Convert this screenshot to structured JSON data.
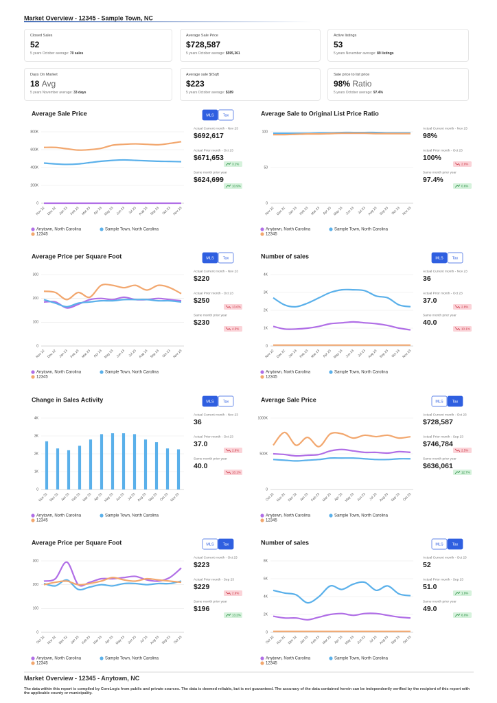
{
  "header": {
    "title": "Market Overview - 12345 - Sample Town, NC"
  },
  "cards": [
    {
      "label": "Closed Sales",
      "value": "52",
      "note": "5 years October average:",
      "note_value": "70 sales"
    },
    {
      "label": "Average Sale Price",
      "value": "$728,587",
      "note": "5 years October average:",
      "note_value": "$595,361"
    },
    {
      "label": "Active listings",
      "value": "53",
      "note": "5 years November average:",
      "note_value": "89 listings"
    },
    {
      "label": "Days On Market",
      "value": "18",
      "unit": "Avg",
      "note": "5 years November average:",
      "note_value": "33 days"
    },
    {
      "label": "Average sale $/Sqft",
      "value": "$223",
      "note": "5 years October average:",
      "note_value": "$189"
    },
    {
      "label": "Sale price to list price",
      "value": "98%",
      "unit": "Ratio",
      "note": "5 years October average:",
      "note_value": "97.4%"
    }
  ],
  "chart_data": [
    {
      "type": "line",
      "title": "Average Sale Price",
      "toggle": {
        "options": [
          "MLS",
          "Tax"
        ],
        "active": 0
      },
      "categories": [
        "Nov 22",
        "Dec 22",
        "Jan 23",
        "Feb 23",
        "Mar 23",
        "Apr 23",
        "May 23",
        "Jun 23",
        "Jul 23",
        "Aug 23",
        "Sep 23",
        "Oct 23",
        "Nov 23"
      ],
      "series": [
        {
          "name": "Anytown, North Carolina",
          "color": "#b06ee6",
          "values": [
            0,
            0,
            0,
            0,
            0,
            0,
            0,
            0,
            0,
            0,
            0,
            0,
            0
          ]
        },
        {
          "name": "Sample Town, North Carolina",
          "color": "#5ab0ea",
          "values": [
            450000,
            440000,
            435000,
            440000,
            455000,
            470000,
            480000,
            485000,
            480000,
            475000,
            470000,
            468000,
            465000
          ]
        },
        {
          "name": "12345",
          "color": "#f2a76e",
          "values": [
            625000,
            625000,
            610000,
            595000,
            600000,
            615000,
            650000,
            660000,
            665000,
            660000,
            655000,
            670000,
            690000
          ]
        }
      ],
      "ylim": [
        0,
        800000
      ],
      "yticks": [
        0,
        {
          "value": 200000,
          "label": "200K"
        },
        {
          "value": 400000,
          "label": "400K"
        },
        {
          "value": 600000,
          "label": "600K"
        },
        {
          "value": 800000,
          "label": "800K"
        }
      ],
      "grid": true,
      "stats": [
        {
          "label": "Actual Current month - Nov 23",
          "value": "$692,617"
        },
        {
          "label": "Actual Prior month - Oct 23",
          "value": "$671,653",
          "change": "3.1%",
          "direction": "up"
        },
        {
          "label": "Same month prior year",
          "value": "$624,699",
          "change": "10.9%",
          "direction": "up"
        }
      ]
    },
    {
      "type": "line",
      "title": "Average Sale to Original List Price Ratio",
      "categories": [
        "Nov 22",
        "Dec 22",
        "Jan 23",
        "Feb 23",
        "Mar 23",
        "Apr 23",
        "May 23",
        "Jun 23",
        "Jul 23",
        "Aug 23",
        "Sep 23",
        "Oct 23",
        "Nov 23"
      ],
      "series": [
        {
          "name": "Anytown, North Carolina",
          "color": "#b06ee6",
          "values": [
            97,
            97,
            97,
            97.5,
            97.5,
            98,
            98,
            98,
            98,
            98,
            98,
            98,
            98
          ]
        },
        {
          "name": "Sample Town, North Carolina",
          "color": "#5ab0ea",
          "values": [
            98,
            98,
            98,
            98,
            98.5,
            98.5,
            99,
            99,
            99,
            99,
            98.5,
            98.5,
            98.5
          ]
        },
        {
          "name": "12345",
          "color": "#f2a76e",
          "values": [
            96,
            96,
            96.5,
            97,
            97,
            97.5,
            98,
            98,
            98,
            97.5,
            97.5,
            97.5,
            97.5
          ]
        }
      ],
      "ylim": [
        0,
        100
      ],
      "yticks": [
        0,
        50,
        100
      ],
      "grid": true,
      "stats": [
        {
          "label": "Actual Current month - Nov 23",
          "value": "98%"
        },
        {
          "label": "Actual Prior month - Oct 23",
          "value": "100%",
          "change": "2.0%",
          "direction": "down"
        },
        {
          "label": "Same month prior year",
          "value": "97.4%",
          "change": "0.6%",
          "direction": "up"
        }
      ]
    },
    {
      "type": "line",
      "title": "Average Price per Square Foot",
      "toggle": {
        "options": [
          "MLS",
          "Tax"
        ],
        "active": 0
      },
      "categories": [
        "Nov 22",
        "Dec 22",
        "Jan 23",
        "Feb 23",
        "Mar 23",
        "Apr 23",
        "May 23",
        "Jun 23",
        "Jul 23",
        "Aug 23",
        "Sep 23",
        "Oct 23",
        "Nov 23"
      ],
      "series": [
        {
          "name": "Anytown, North Carolina",
          "color": "#b06ee6",
          "values": [
            185,
            185,
            160,
            175,
            195,
            200,
            195,
            205,
            195,
            195,
            200,
            195,
            190
          ]
        },
        {
          "name": "Sample Town, North Carolina",
          "color": "#5ab0ea",
          "values": [
            195,
            180,
            165,
            180,
            185,
            190,
            190,
            195,
            195,
            195,
            190,
            190,
            185
          ]
        },
        {
          "name": "12345",
          "color": "#f2a76e",
          "values": [
            230,
            225,
            195,
            225,
            205,
            255,
            255,
            245,
            255,
            235,
            255,
            245,
            220
          ]
        }
      ],
      "ylim": [
        0,
        300
      ],
      "yticks": [
        0,
        100,
        200,
        300
      ],
      "grid": true,
      "stats": [
        {
          "label": "Actual Current month - Nov 23",
          "value": "$220"
        },
        {
          "label": "Actual Prior month - Oct 23",
          "value": "$250",
          "change": "13.6%",
          "direction": "down"
        },
        {
          "label": "Same month prior year",
          "value": "$230",
          "change": "4.5%",
          "direction": "down"
        }
      ]
    },
    {
      "type": "line",
      "title": "Number of sales",
      "toggle": {
        "options": [
          "MLS",
          "Tax"
        ],
        "active": 0
      },
      "categories": [
        "Nov 22",
        "Dec 22",
        "Jan 23",
        "Feb 23",
        "Mar 23",
        "Apr 23",
        "May 23",
        "Jun 23",
        "Jul 23",
        "Aug 23",
        "Sep 23",
        "Oct 23",
        "Nov 23"
      ],
      "series": [
        {
          "name": "Anytown, North Carolina",
          "color": "#b06ee6",
          "values": [
            1100,
            950,
            950,
            1000,
            1100,
            1250,
            1300,
            1350,
            1300,
            1250,
            1150,
            1000,
            900
          ]
        },
        {
          "name": "Sample Town, North Carolina",
          "color": "#5ab0ea",
          "values": [
            2700,
            2300,
            2200,
            2400,
            2700,
            3000,
            3150,
            3150,
            3100,
            2800,
            2700,
            2300,
            2200
          ]
        },
        {
          "name": "12345",
          "color": "#f2a76e",
          "values": [
            50,
            50,
            50,
            50,
            50,
            50,
            50,
            50,
            50,
            50,
            50,
            50,
            50
          ]
        }
      ],
      "ylim": [
        0,
        4000
      ],
      "yticks": [
        0,
        {
          "value": 1000,
          "label": "1K"
        },
        {
          "value": 2000,
          "label": "2K"
        },
        {
          "value": 3000,
          "label": "3K"
        },
        {
          "value": 4000,
          "label": "4K"
        }
      ],
      "grid": true,
      "stats": [
        {
          "label": "Actual Current month - Nov 23",
          "value": "36"
        },
        {
          "label": "Actual Prior month - Oct 23",
          "value": "37.0",
          "change": "2.8%",
          "direction": "down"
        },
        {
          "label": "Same month prior year",
          "value": "40.0",
          "change": "10.1%",
          "direction": "down"
        }
      ]
    },
    {
      "type": "bar",
      "title": "Change in Sales Activity",
      "toggle": {
        "options": [
          "MLS",
          "Tax"
        ],
        "active": 0
      },
      "categories": [
        "Nov 22",
        "Dec 22",
        "Jan 23",
        "Feb 23",
        "Mar 23",
        "Apr 23",
        "May 23",
        "Jun 23",
        "Jul 23",
        "Aug 23",
        "Sep 23",
        "Oct 23",
        "Nov 23"
      ],
      "series": [
        {
          "name": "Sample Town, North Carolina",
          "color": "#5ab0ea",
          "values": [
            2700,
            2300,
            2200,
            2450,
            2800,
            3100,
            3150,
            3150,
            3100,
            2800,
            2650,
            2300,
            2250
          ]
        }
      ],
      "legend": [
        {
          "name": "Anytown, North Carolina",
          "color": "#b06ee6"
        },
        {
          "name": "Sample Town, North Carolina",
          "color": "#5ab0ea"
        },
        {
          "name": "12345",
          "color": "#f2a76e"
        }
      ],
      "ylim": [
        0,
        4000
      ],
      "yticks": [
        0,
        {
          "value": 1000,
          "label": "1K"
        },
        {
          "value": 2000,
          "label": "2K"
        },
        {
          "value": 3000,
          "label": "3K"
        },
        {
          "value": 4000,
          "label": "4K"
        }
      ],
      "grid": true,
      "stats": [
        {
          "label": "Actual Current month - Nov 23",
          "value": "36"
        },
        {
          "label": "Actual Prior month - Oct 23",
          "value": "37.0",
          "change": "2.8%",
          "direction": "down"
        },
        {
          "label": "Same month prior year",
          "value": "40.0",
          "change": "10.1%",
          "direction": "down"
        }
      ]
    },
    {
      "type": "line",
      "title": "Average Sale Price",
      "toggle": {
        "options": [
          "MLS",
          "Tax"
        ],
        "active": 1
      },
      "categories": [
        "Oct 22",
        "Nov 22",
        "Dec 22",
        "Jan 23",
        "Feb 23",
        "Mar 23",
        "Apr 23",
        "May 23",
        "Jun 23",
        "Jul 23",
        "Aug 23",
        "Sep 23",
        "Oct 23"
      ],
      "series": [
        {
          "name": "Anytown, North Carolina",
          "color": "#b06ee6",
          "values": [
            500000,
            490000,
            470000,
            480000,
            490000,
            540000,
            560000,
            540000,
            520000,
            520000,
            510000,
            530000,
            520000
          ]
        },
        {
          "name": "Sample Town, North Carolina",
          "color": "#5ab0ea",
          "values": [
            420000,
            410000,
            400000,
            410000,
            420000,
            440000,
            440000,
            440000,
            430000,
            420000,
            420000,
            430000,
            430000
          ]
        },
        {
          "name": "12345",
          "color": "#f2a76e",
          "values": [
            620000,
            800000,
            620000,
            730000,
            600000,
            780000,
            780000,
            720000,
            760000,
            740000,
            760000,
            720000,
            740000
          ]
        }
      ],
      "ylim": [
        0,
        1000000
      ],
      "yticks": [
        0,
        {
          "value": 500000,
          "label": "500K"
        },
        {
          "value": 1000000,
          "label": "1000K"
        }
      ],
      "grid": true,
      "stats": [
        {
          "label": "Actual Current month - Oct 23",
          "value": "$728,587"
        },
        {
          "label": "Actual Prior month - Sep 23",
          "value": "$746,784",
          "change": "2.5%",
          "direction": "down"
        },
        {
          "label": "Same month prior year",
          "value": "$636,061",
          "change": "12.7%",
          "direction": "up"
        }
      ]
    },
    {
      "type": "line",
      "title": "Average Price per Square Foot",
      "toggle": {
        "options": [
          "MLS",
          "Tax"
        ],
        "active": 1
      },
      "categories": [
        "Oct 22",
        "Nov 22",
        "Dec 22",
        "Jan 23",
        "Feb 23",
        "Mar 23",
        "Apr 23",
        "May 23",
        "Jun 23",
        "Jul 23",
        "Aug 23",
        "Sep 23",
        "Oct 23"
      ],
      "series": [
        {
          "name": "Anytown, North Carolina",
          "color": "#b06ee6",
          "values": [
            215,
            225,
            295,
            200,
            210,
            225,
            225,
            230,
            235,
            220,
            215,
            230,
            270
          ]
        },
        {
          "name": "Sample Town, North Carolina",
          "color": "#5ab0ea",
          "values": [
            205,
            195,
            220,
            180,
            190,
            200,
            195,
            205,
            205,
            200,
            205,
            205,
            215
          ]
        },
        {
          "name": "12345",
          "color": "#f2a76e",
          "values": [
            200,
            210,
            215,
            200,
            205,
            215,
            230,
            220,
            215,
            225,
            220,
            215,
            210
          ]
        }
      ],
      "ylim": [
        0,
        300
      ],
      "yticks": [
        0,
        100,
        200,
        300
      ],
      "grid": true,
      "stats": [
        {
          "label": "Actual Current month - Oct 23",
          "value": "$223"
        },
        {
          "label": "Actual Prior month - Sep 23",
          "value": "$229",
          "change": "2.6%",
          "direction": "down"
        },
        {
          "label": "Same month prior year",
          "value": "$196",
          "change": "13.2%",
          "direction": "up"
        }
      ]
    },
    {
      "type": "line",
      "title": "Number of sales",
      "toggle": {
        "options": [
          "MLS",
          "Tax"
        ],
        "active": 1
      },
      "categories": [
        "Oct 22",
        "Nov 22",
        "Dec 22",
        "Jan 23",
        "Feb 23",
        "Mar 23",
        "Apr 23",
        "May 23",
        "Jun 23",
        "Jul 23",
        "Aug 23",
        "Sep 23",
        "Oct 23"
      ],
      "series": [
        {
          "name": "Anytown, North Carolina",
          "color": "#b06ee6",
          "values": [
            1800,
            1600,
            1600,
            1400,
            1700,
            2000,
            2100,
            1900,
            2100,
            2100,
            1900,
            1700,
            1600
          ]
        },
        {
          "name": "Sample Town, North Carolina",
          "color": "#5ab0ea",
          "values": [
            4700,
            4400,
            4200,
            3300,
            4000,
            5200,
            4800,
            5400,
            5600,
            4700,
            5200,
            4300,
            4100
          ]
        },
        {
          "name": "12345",
          "color": "#f2a76e",
          "values": [
            100,
            100,
            100,
            100,
            100,
            100,
            100,
            100,
            100,
            100,
            100,
            100,
            100
          ]
        }
      ],
      "ylim": [
        0,
        8000
      ],
      "yticks": [
        0,
        {
          "value": 2000,
          "label": "2K"
        },
        {
          "value": 4000,
          "label": "4K"
        },
        {
          "value": 6000,
          "label": "6K"
        },
        {
          "value": 8000,
          "label": "8K"
        }
      ],
      "grid": true,
      "stats": [
        {
          "label": "Actual Current month - Oct 23",
          "value": "52"
        },
        {
          "label": "Actual Prior month - Sep 23",
          "value": "51.0",
          "change": "1.9%",
          "direction": "up"
        },
        {
          "label": "Same month prior year",
          "value": "49.0",
          "change": "6.0%",
          "direction": "up"
        }
      ]
    }
  ],
  "footer": {
    "title": "Market Overview - 12345 - Anytown, NC",
    "disclaimer": "The data within this report is compiled by CoreLogic from public and private sources. The data is deemed reliable, but is not guaranteed. The accuracy of the data contained herein can be independently verified by the recipient of this report with the applicable county or municipality."
  }
}
